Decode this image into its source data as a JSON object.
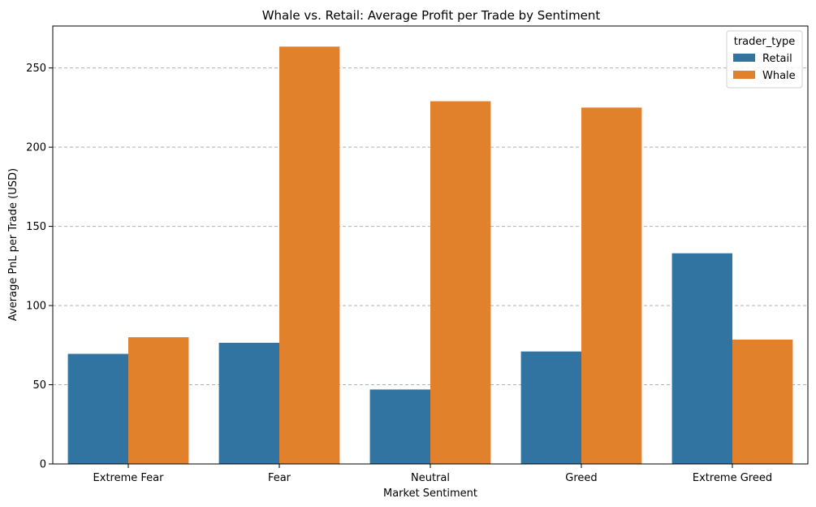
{
  "chart_data": {
    "type": "bar",
    "title": "Whale vs. Retail: Average Profit per Trade by Sentiment",
    "xlabel": "Market Sentiment",
    "ylabel": "Average PnL per Trade (USD)",
    "categories": [
      "Extreme Fear",
      "Fear",
      "Neutral",
      "Greed",
      "Extreme Greed"
    ],
    "series": [
      {
        "name": "Retail",
        "color": "#3274a1",
        "values": [
          69.5,
          76.5,
          47,
          71,
          133
        ]
      },
      {
        "name": "Whale",
        "color": "#e1812c",
        "values": [
          80,
          263.5,
          229,
          225,
          78.5
        ]
      }
    ],
    "ylim": [
      0,
      276.5
    ],
    "yticks": [
      0,
      50,
      100,
      150,
      200,
      250
    ],
    "grid": "y-dashed",
    "legend": {
      "title": "trader_type",
      "placement": "top-right"
    }
  }
}
